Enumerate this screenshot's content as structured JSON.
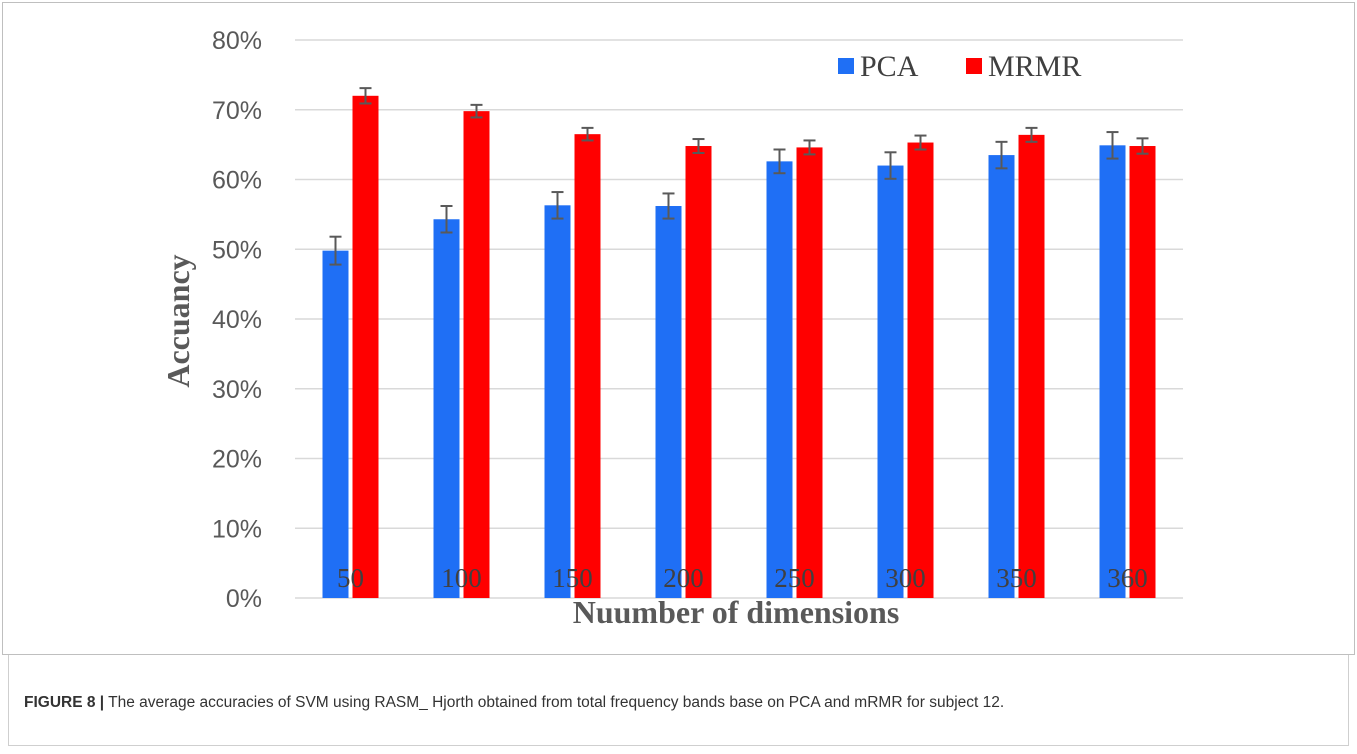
{
  "caption": {
    "label": "FIGURE 8 |",
    "text": " The average accuracies of SVM using RASM_ Hjorth obtained from total frequency bands base on PCA and mRMR for subject 12."
  },
  "chart_data": {
    "type": "bar",
    "xlabel": "Nuumber of dimensions",
    "ylabel": "Accuancy",
    "ylim": [
      0,
      80
    ],
    "y_ticks": [
      "0%",
      "10%",
      "20%",
      "30%",
      "40%",
      "50%",
      "60%",
      "70%",
      "80%"
    ],
    "grid": true,
    "legend_position": "top-right",
    "categories": [
      "50",
      "100",
      "150",
      "200",
      "250",
      "300",
      "350",
      "360"
    ],
    "series": [
      {
        "name": "PCA",
        "color": "#1f6ff5",
        "values": [
          49.8,
          54.3,
          56.3,
          56.2,
          62.6,
          62.0,
          63.5,
          64.9
        ],
        "errors": [
          2.0,
          1.9,
          1.9,
          1.8,
          1.7,
          1.9,
          1.9,
          1.9
        ]
      },
      {
        "name": "MRMR",
        "color": "#ff0000",
        "values": [
          72.0,
          69.8,
          66.5,
          64.8,
          64.6,
          65.3,
          66.4,
          64.8
        ],
        "errors": [
          1.1,
          0.9,
          0.9,
          1.0,
          1.0,
          1.0,
          1.0,
          1.1
        ]
      }
    ]
  }
}
